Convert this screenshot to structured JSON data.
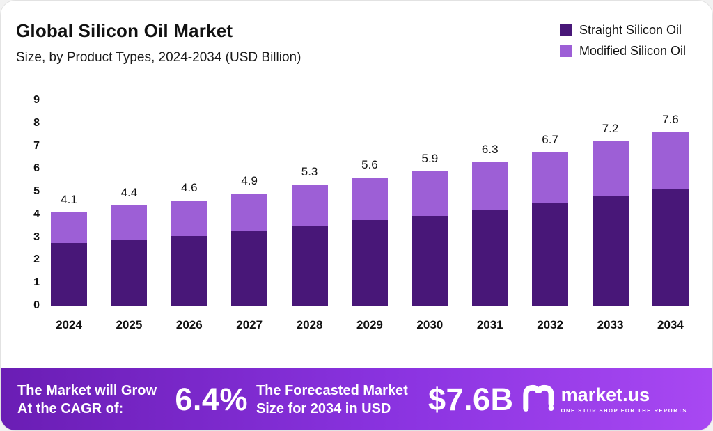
{
  "header": {
    "title": "Global Silicon Oil Market",
    "subtitle": "Size, by Product Types, 2024-2034 (USD Billion)"
  },
  "legend": [
    {
      "label": "Straight Silicon Oil",
      "color": "#481778"
    },
    {
      "label": "Modified Silicon Oil",
      "color": "#9d5fd6"
    }
  ],
  "chart_data": {
    "type": "bar",
    "stacked": true,
    "title": "Global Silicon Oil Market",
    "subtitle": "Size, by Product Types, 2024-2034 (USD Billion)",
    "unit": "USD Billion",
    "categories": [
      "2024",
      "2025",
      "2026",
      "2027",
      "2028",
      "2029",
      "2030",
      "2031",
      "2032",
      "2033",
      "2034"
    ],
    "series": [
      {
        "name": "Straight Silicon Oil",
        "color": "#481778",
        "values": [
          2.75,
          2.9,
          3.05,
          3.25,
          3.5,
          3.75,
          3.95,
          4.2,
          4.5,
          4.8,
          5.1
        ]
      },
      {
        "name": "Modified Silicon Oil",
        "color": "#9d5fd6",
        "values": [
          1.35,
          1.5,
          1.55,
          1.65,
          1.8,
          1.85,
          1.95,
          2.1,
          2.2,
          2.4,
          2.5
        ]
      }
    ],
    "totals": [
      "4.1",
      "4.4",
      "4.6",
      "4.9",
      "5.3",
      "5.6",
      "5.9",
      "6.3",
      "6.7",
      "7.2",
      "7.6"
    ],
    "ylim": [
      0,
      9
    ],
    "yticks": [
      0,
      1,
      2,
      3,
      4,
      5,
      6,
      7,
      8,
      9
    ],
    "grid": false,
    "legend_position": "top-right"
  },
  "footer": {
    "cagr_label": "The Market will Grow At the CAGR of:",
    "cagr_value": "6.4%",
    "forecast_label": "The Forecasted Market Size for 2034 in USD",
    "forecast_value": "$7.6B",
    "brand": "market.us",
    "brand_tagline": "ONE STOP SHOP FOR THE REPORTS"
  }
}
